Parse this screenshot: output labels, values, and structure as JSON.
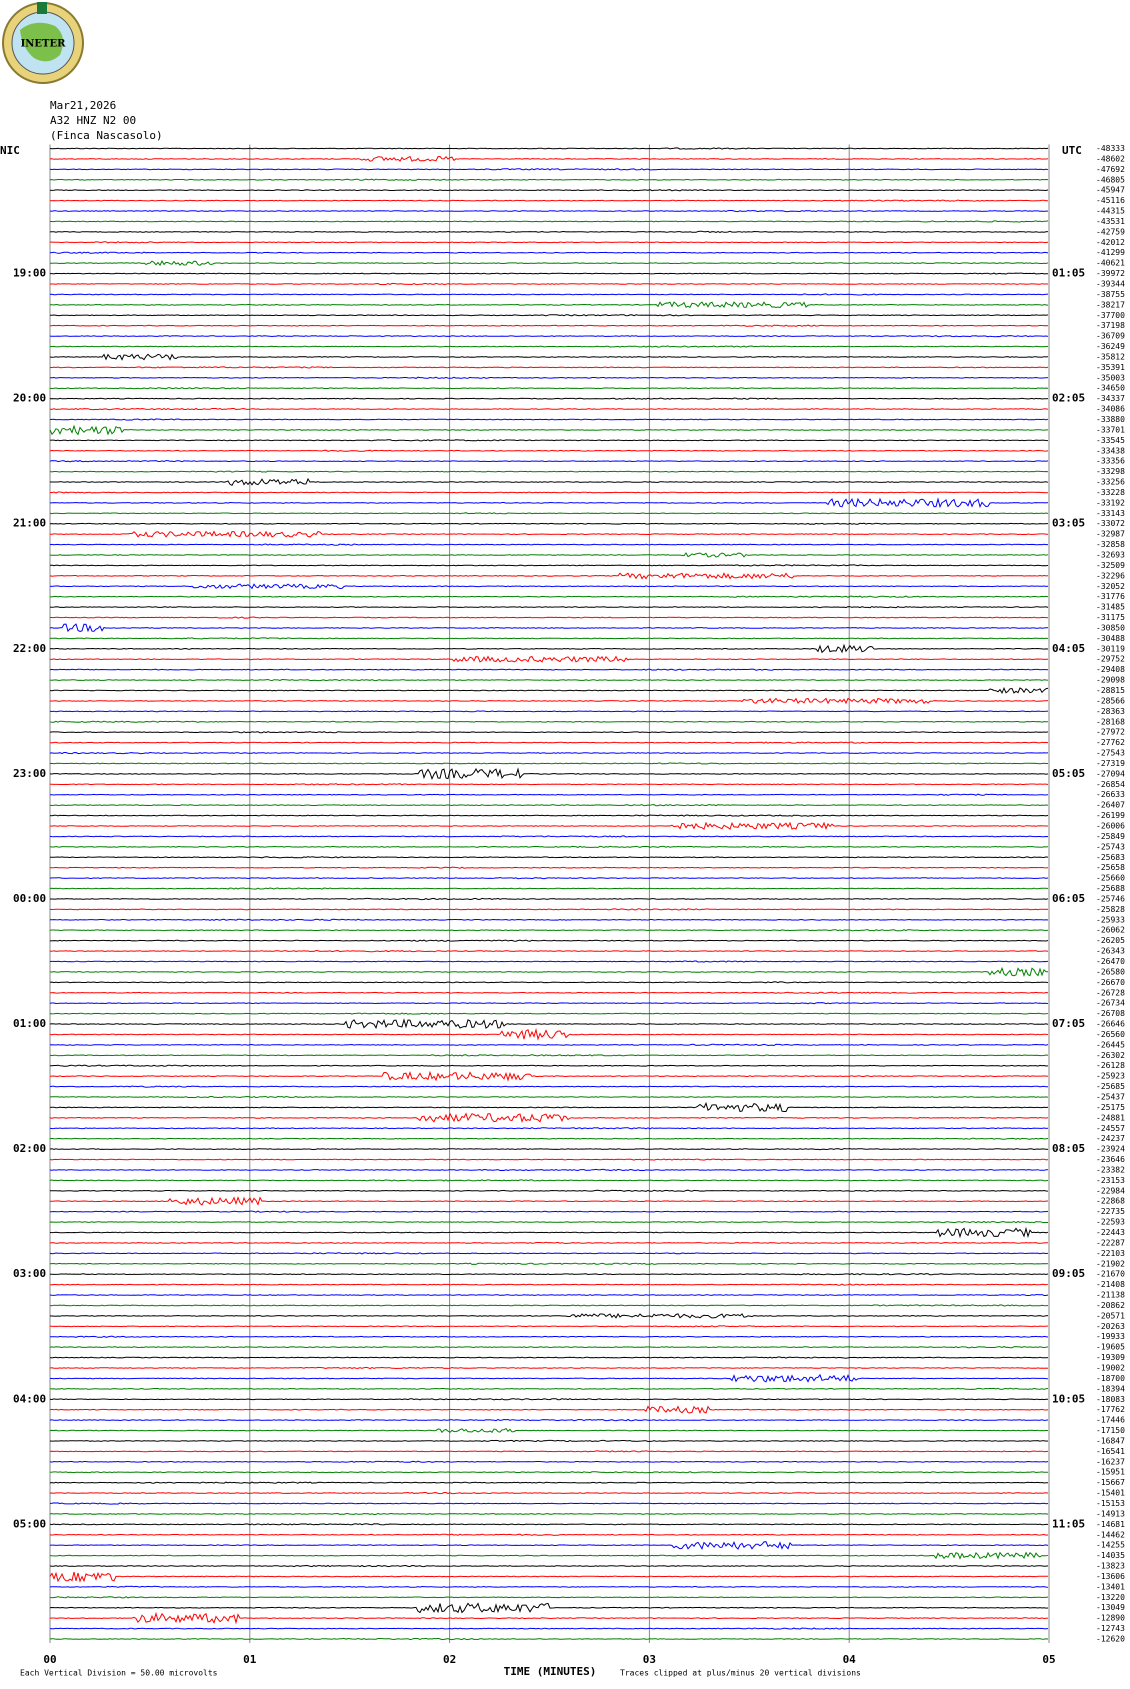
{
  "header": {
    "logo_text": "INETER",
    "date": "Mar21,2026",
    "station": "A32 HNZ N2 00",
    "site": "(Finca Nascasolo)"
  },
  "chart_data": {
    "type": "helicorder",
    "left_axis_label": "NIC",
    "right_axis_label": "UTC",
    "left_time_labels": [
      "19:00",
      "20:00",
      "21:00",
      "22:00",
      "23:00",
      "00:00",
      "01:00",
      "02:00",
      "03:00",
      "04:00",
      "05:00"
    ],
    "right_time_labels": [
      "01:05",
      "02:05",
      "03:05",
      "04:05",
      "05:05",
      "06:05",
      "07:05",
      "08:05",
      "09:05",
      "10:05",
      "11:05"
    ],
    "xlabel": "TIME (MINUTES)",
    "xlim": [
      0,
      5
    ],
    "xticks": [
      {
        "value": 0,
        "label": "00"
      },
      {
        "value": 1,
        "label": "01"
      },
      {
        "value": 2,
        "label": "02"
      },
      {
        "value": 3,
        "label": "03"
      },
      {
        "value": 4,
        "label": "04"
      },
      {
        "value": 5,
        "label": "05"
      }
    ],
    "colors": [
      "#000000",
      "#ff0000",
      "#0000ff",
      "#008000"
    ],
    "scale_note": "Each Vertical Division =   50.00 microvolts",
    "clip_note": "Traces clipped at plus/minus 20 vertical divisions",
    "offsets": [
      -48333,
      -48602,
      -47692,
      -46805,
      -45947,
      -45116,
      -44315,
      -43531,
      -42759,
      -42012,
      -41299,
      -40621,
      -39972,
      -39344,
      -38755,
      -38217,
      -37700,
      -37198,
      -36709,
      -36249,
      -35812,
      -35391,
      -35003,
      -34650,
      -34337,
      -34086,
      -33880,
      -33701,
      -33545,
      -33438,
      -33356,
      -33298,
      -33256,
      -33228,
      -33192,
      -33143,
      -33072,
      -32987,
      -32858,
      -32693,
      -32509,
      -32296,
      -32052,
      -31776,
      -31485,
      -31175,
      -30850,
      -30488,
      -30119,
      -29752,
      -29408,
      -29098,
      -28815,
      -28566,
      -28363,
      -28168,
      -27972,
      -27762,
      -27543,
      -27319,
      -27094,
      -26854,
      -26633,
      -26407,
      -26199,
      -26006,
      -25849,
      -25743,
      -25683,
      -25658,
      -25660,
      -25688,
      -25746,
      -25828,
      -25933,
      -26062,
      -26205,
      -26343,
      -26470,
      -26580,
      -26670,
      -26728,
      -26734,
      -26708,
      -26646,
      -26560,
      -26445,
      -26302,
      -26128,
      -25923,
      -25685,
      -25437,
      -25175,
      -24881,
      -24557,
      -24237,
      -23924,
      -23646,
      -23382,
      -23153,
      -22984,
      -22868,
      -22735,
      -22593,
      -22443,
      -22287,
      -22103,
      -21902,
      -21670,
      -21408,
      -21138,
      -20862,
      -20571,
      -20263,
      -19933,
      -19605,
      -19309,
      -19002,
      -18700,
      -18394,
      -18083,
      -17762,
      -17446,
      -17150,
      -16847,
      -16541,
      -16237,
      -15951,
      -15667,
      -15401,
      -15153,
      -14913,
      -14681,
      -14462,
      -14255,
      -14035,
      -13823,
      -13606,
      -13401,
      -13220,
      -13049,
      -12890,
      -12743,
      -12620
    ]
  }
}
